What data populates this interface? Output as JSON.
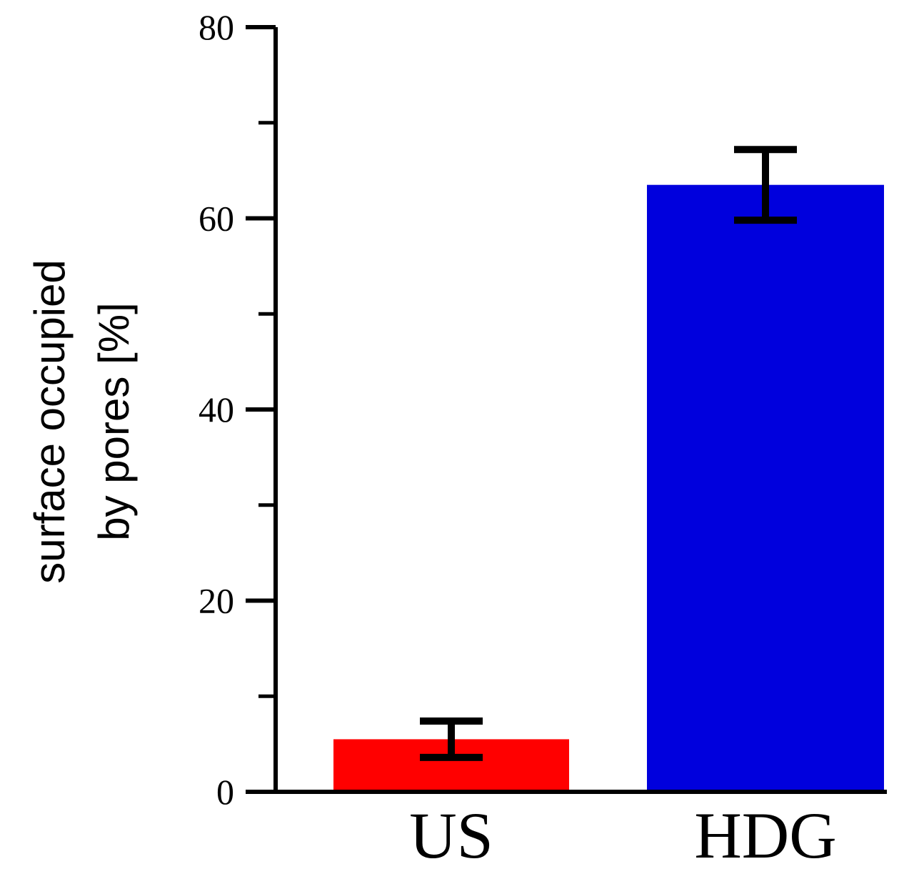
{
  "chart_data": {
    "type": "bar",
    "title": "",
    "xlabel": "",
    "ylabel_lines": [
      "surface occupied",
      "by pores [%]"
    ],
    "categories": [
      "US",
      "HDG"
    ],
    "values": [
      5.5,
      63.5
    ],
    "errors": [
      1.9,
      3.7
    ],
    "colors": [
      "#ff0000",
      "#0000dd"
    ],
    "ylim": [
      0,
      80
    ],
    "yticks_major": [
      0,
      20,
      40,
      60,
      80
    ],
    "yticks_major_labels": [
      "0",
      "20",
      "40",
      "60",
      "80"
    ],
    "yticks_minor": [
      10,
      30,
      50,
      70
    ],
    "grid": false,
    "legend": "none"
  }
}
